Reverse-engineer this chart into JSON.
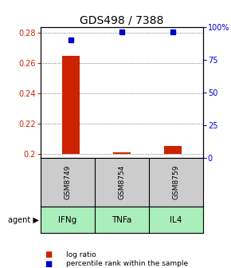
{
  "title": "GDS498 / 7388",
  "samples": [
    "GSM8749",
    "GSM8754",
    "GSM8759"
  ],
  "agents": [
    "IFNg",
    "TNFa",
    "IL4"
  ],
  "log_ratios": [
    0.265,
    0.201,
    0.205
  ],
  "percentile_ranks": [
    90,
    96,
    96
  ],
  "ylim_left": [
    0.197,
    0.284
  ],
  "ylim_right": [
    0,
    100
  ],
  "yticks_left": [
    0.2,
    0.22,
    0.24,
    0.26,
    0.28
  ],
  "yticks_right": [
    0,
    25,
    50,
    75,
    100
  ],
  "ytick_labels_left": [
    "0.2",
    "0.22",
    "0.24",
    "0.26",
    "0.28"
  ],
  "ytick_labels_right": [
    "0",
    "25",
    "50",
    "75",
    "100%"
  ],
  "bar_color": "#cc2200",
  "marker_color": "#0000cc",
  "grid_color": "#555555",
  "sample_box_color": "#cccccc",
  "agent_box_color": "#aaeebb",
  "title_fontsize": 10,
  "tick_fontsize": 7,
  "bar_width": 0.35,
  "baseline": 0.197
}
